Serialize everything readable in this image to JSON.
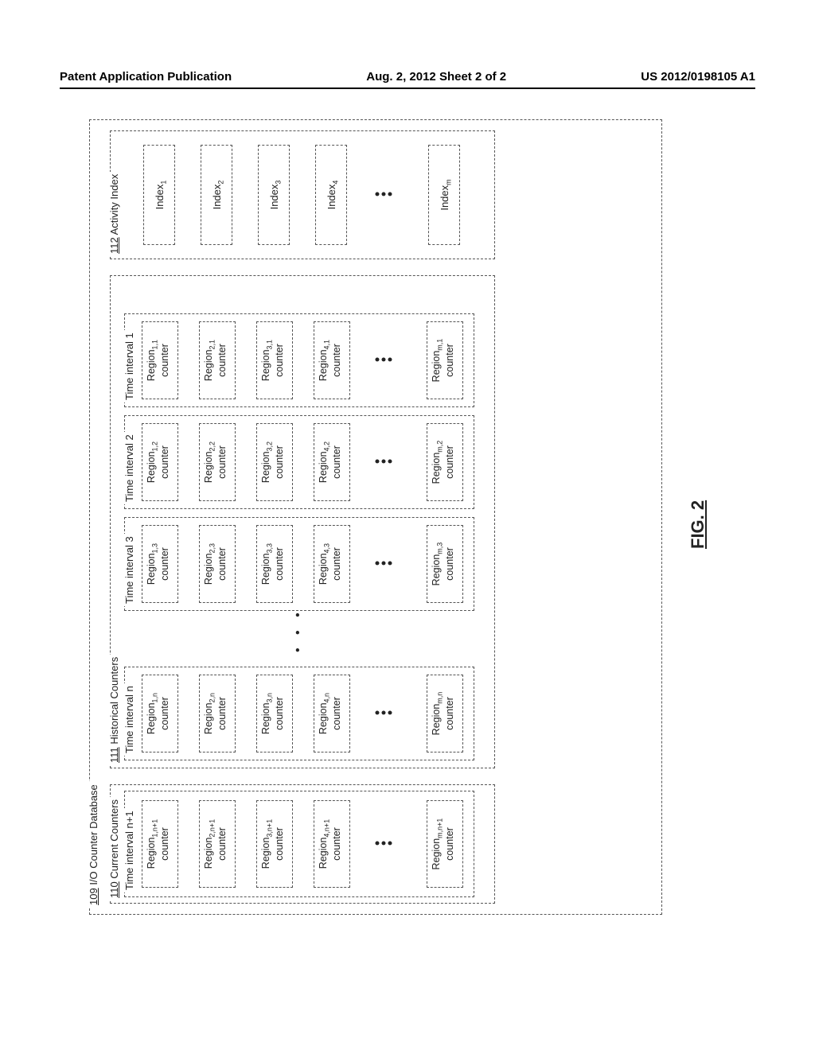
{
  "header": {
    "left": "Patent Application Publication",
    "center": "Aug. 2, 2012  Sheet 2 of 2",
    "right": "US 2012/0198105 A1"
  },
  "database": {
    "ref": "109",
    "title": "I/O Counter Database"
  },
  "current": {
    "ref": "110",
    "title": "Current Counters",
    "interval_label": "Time interval n+1",
    "rows": [
      {
        "label": "Region",
        "sub": "1,n+1",
        "line2": "counter"
      },
      {
        "label": "Region",
        "sub": "2,n+1",
        "line2": "counter"
      },
      {
        "label": "Region",
        "sub": "3,n+1",
        "line2": "counter"
      },
      {
        "label": "Region",
        "sub": "4,n+1",
        "line2": "counter"
      },
      {
        "dots": true
      },
      {
        "label": "Region",
        "sub": "m,n+1",
        "line2": "counter"
      }
    ]
  },
  "historical": {
    "ref": "111",
    "title": "Historical Counters",
    "intervals": [
      {
        "label": "Time interval n",
        "col_sub_suffix": "n"
      },
      {
        "hdots": true
      },
      {
        "label": "Time interval 3",
        "col_sub_suffix": "3"
      },
      {
        "label": "Time interval 2",
        "col_sub_suffix": "2"
      },
      {
        "label": "Time interval 1",
        "col_sub_suffix": "1"
      }
    ],
    "region_prefixes": [
      "1",
      "2",
      "3",
      "4",
      "…",
      "m"
    ]
  },
  "activity": {
    "ref": "112",
    "title": "Activity Index",
    "rows": [
      {
        "label": "Index",
        "sub": "1"
      },
      {
        "label": "Index",
        "sub": "2"
      },
      {
        "label": "Index",
        "sub": "3"
      },
      {
        "label": "Index",
        "sub": "4"
      },
      {
        "dots": true
      },
      {
        "label": "Index",
        "sub": "m"
      }
    ]
  },
  "figcap": "FIG. 2",
  "style": {
    "text_color": "#222222",
    "dash_color": "#555555",
    "background": "#ffffff"
  }
}
